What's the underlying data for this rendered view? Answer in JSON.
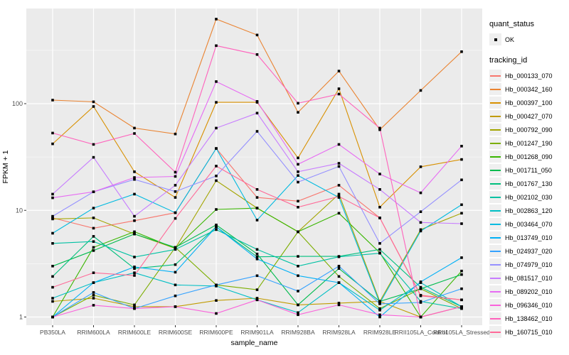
{
  "chart_data": {
    "type": "line",
    "title": "",
    "xlabel": "sample_name",
    "ylabel": "FPKM + 1",
    "yscale": "log",
    "yticks": [
      1,
      10,
      100
    ],
    "ytick_labels": [
      "1",
      "10",
      "100"
    ],
    "yminor": [
      3.1623,
      31.623,
      316.23
    ],
    "ylim": [
      0.95,
      780
    ],
    "grid": true,
    "panel_bg": "#EBEBEB",
    "grid_color": "#FFFFFF",
    "point_color": "#000000",
    "axis_text_color": "#4D4D4D",
    "categories": [
      "PB350LA",
      "RRIM600LA",
      "RRIM600LE",
      "RRIM600SE",
      "RRIM600PE",
      "RRIM901LA",
      "RRIM928BA",
      "RRIM928LA",
      "RRIM928LE",
      "RRII105LA_Control",
      "RRII105LA_Stressed"
    ],
    "series": [
      {
        "name": "Hb_000133_070",
        "color": "#F8766D",
        "values": [
          8.5,
          6.8,
          8.0,
          9.5,
          38,
          13.2,
          12.2,
          17.2,
          8.5,
          1.6,
          1.45
        ]
      },
      {
        "name": "Hb_000342_160",
        "color": "#EA8331",
        "values": [
          108,
          104,
          59,
          52,
          620,
          440,
          83,
          202,
          57,
          133,
          307
        ]
      },
      {
        "name": "Hb_000397_100",
        "color": "#D89000",
        "values": [
          42,
          94,
          23,
          13.2,
          103,
          103,
          31,
          138,
          10.7,
          25.6,
          30
        ]
      },
      {
        "name": "Hb_000427_070",
        "color": "#C09B00",
        "values": [
          1.4,
          1.5,
          1.25,
          1.25,
          1.43,
          1.5,
          1.3,
          1.35,
          1.4,
          1.0,
          1.25
        ]
      },
      {
        "name": "Hb_000792_090",
        "color": "#A3A500",
        "values": [
          8.3,
          8.5,
          6.0,
          4.4,
          19,
          10.5,
          6.3,
          14.2,
          1.4,
          6.6,
          9.4
        ]
      },
      {
        "name": "Hb_001247_190",
        "color": "#7CAE00",
        "values": [
          1.0,
          1.6,
          1.3,
          4.5,
          2.0,
          1.8,
          6.3,
          2.4,
          1.2,
          1.84,
          1.2
        ]
      },
      {
        "name": "Hb_001268_090",
        "color": "#39B600",
        "values": [
          1.0,
          4.5,
          6.3,
          4.4,
          10.2,
          10.5,
          6.3,
          9.4,
          4.0,
          1.0,
          2.7
        ]
      },
      {
        "name": "Hb_001711_050",
        "color": "#00BB4E",
        "values": [
          3.0,
          4.2,
          6.0,
          4.5,
          7.3,
          3.9,
          1.3,
          2.85,
          1.4,
          1.84,
          2.5
        ]
      },
      {
        "name": "Hb_001767_130",
        "color": "#00BF7D",
        "values": [
          2.4,
          5.7,
          2.85,
          3.1,
          7.0,
          3.67,
          3.7,
          3.7,
          4.3,
          1.9,
          1.25
        ]
      },
      {
        "name": "Hb_002102_030",
        "color": "#00C1A3",
        "values": [
          4.9,
          5.1,
          3.65,
          4.3,
          6.6,
          4.3,
          3.0,
          3.67,
          3.96,
          1.4,
          1.2
        ]
      },
      {
        "name": "Hb_002863_120",
        "color": "#00BFC4",
        "values": [
          1.5,
          2.1,
          2.6,
          2.0,
          1.95,
          1.45,
          1.1,
          2.1,
          1.16,
          2.1,
          1.25
        ]
      },
      {
        "name": "Hb_003464_070",
        "color": "#00BAE0",
        "values": [
          6.1,
          10.5,
          14.2,
          9.5,
          38,
          8.1,
          21.2,
          13.2,
          1.35,
          6.4,
          11.3
        ]
      },
      {
        "name": "Hb_013749_010",
        "color": "#00B0F6",
        "values": [
          1.0,
          2.1,
          2.95,
          2.63,
          7.0,
          3.5,
          2.44,
          2.1,
          1.0,
          2.14,
          3.6
        ]
      },
      {
        "name": "Hb_024937_020",
        "color": "#35A2FF",
        "values": [
          1.0,
          1.7,
          1.2,
          1.58,
          2.0,
          2.44,
          1.75,
          3.0,
          1.33,
          1.37,
          1.84
        ]
      },
      {
        "name": "Hb_074979_010",
        "color": "#9590FF",
        "values": [
          8.8,
          14.9,
          19.5,
          15.0,
          21,
          55,
          18.4,
          25.8,
          4.9,
          9.7,
          19.3
        ]
      },
      {
        "name": "Hb_081517_010",
        "color": "#C77CFF",
        "values": [
          14.2,
          31.4,
          8.8,
          17.2,
          59,
          81.5,
          23,
          27.6,
          15.7,
          7.7,
          7.5
        ]
      },
      {
        "name": "Hb_089202_010",
        "color": "#E76BF3",
        "values": [
          13.1,
          14.9,
          20.3,
          20.8,
          161,
          105,
          27,
          41.5,
          21.9,
          14.6,
          40
        ]
      },
      {
        "name": "Hb_096346_010",
        "color": "#FA62DB",
        "values": [
          1.0,
          1.29,
          1.2,
          1.25,
          1.08,
          1.45,
          1.05,
          1.3,
          1.05,
          1.0,
          1.25
        ]
      },
      {
        "name": "Hb_138462_010",
        "color": "#FF62BC",
        "values": [
          53,
          41.5,
          52.5,
          22.8,
          350,
          289,
          101,
          123,
          59,
          1.0,
          1.25
        ]
      },
      {
        "name": "Hb_160715_010",
        "color": "#FF6A98",
        "values": [
          1.9,
          2.6,
          2.45,
          8.4,
          26,
          15.7,
          10.7,
          13.5,
          8.5,
          1.58,
          1.45
        ]
      }
    ],
    "legend": {
      "position": "right",
      "quant_status_title": "quant_status",
      "quant_status_items": [
        {
          "label": "OK",
          "marker": "black-square"
        }
      ],
      "tracking_id_title": "tracking_id"
    }
  }
}
